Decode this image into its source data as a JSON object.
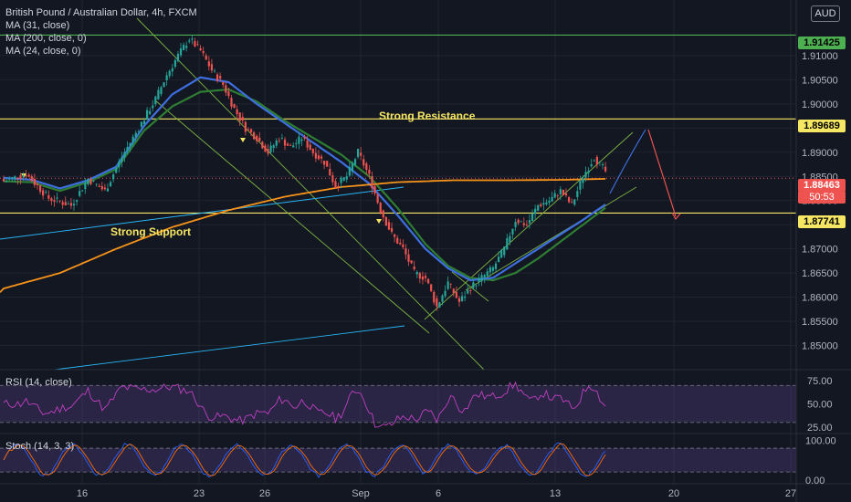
{
  "title": "British Pound / Australian Dollar, 4h, FXCM",
  "indicators": [
    "MA (31, close)",
    "MA (200, close, 0)",
    "MA (24, close, 0)"
  ],
  "unit": "AUD",
  "annotations": {
    "resistance": "Strong Resistance",
    "support": "Strong Support"
  },
  "price_badges": {
    "top": "1.91425",
    "resistance": "1.89689",
    "current": "1.88463",
    "countdown": "50:53",
    "support": "1.87741"
  },
  "panels": {
    "rsi": "RSI (14, close)",
    "stoch": "Stoch (14, 3, 3)"
  },
  "colors": {
    "background": "#131722",
    "up": "#26a69a",
    "down": "#ef5350",
    "ma31": "#3d6fe0",
    "ma200": "#f7931a",
    "ma24": "#2e7d32",
    "level": "#f5e663",
    "top_level": "#4caf50",
    "rsi": "#c040c0",
    "stoch_k": "#2962ff",
    "stoch_d": "#ff6d00"
  },
  "chart_data": {
    "type": "candlestick",
    "ylim": [
      1.845,
      1.92
    ],
    "y_ticks": [
      "1.91000",
      "1.90500",
      "1.90000",
      "1.89500",
      "1.89000",
      "1.88500",
      "1.88000",
      "1.87500",
      "1.87000",
      "1.86500",
      "1.86000",
      "1.85500",
      "1.85000"
    ],
    "x_ticks": [
      "16",
      "23",
      "26",
      "Sep",
      "6",
      "13",
      "20",
      "27"
    ],
    "levels": [
      1.91425,
      1.89689,
      1.87741
    ],
    "current_price": 1.88463,
    "anchors": [
      [
        0,
        1.884
      ],
      [
        8,
        1.8855
      ],
      [
        16,
        1.8805
      ],
      [
        24,
        1.879
      ],
      [
        30,
        1.8845
      ],
      [
        36,
        1.882
      ],
      [
        42,
        1.889
      ],
      [
        48,
        1.895
      ],
      [
        54,
        1.901
      ],
      [
        58,
        1.906
      ],
      [
        62,
        1.91
      ],
      [
        66,
        1.9135
      ],
      [
        70,
        1.911
      ],
      [
        74,
        1.907
      ],
      [
        78,
        1.904
      ],
      [
        82,
        1.899
      ],
      [
        86,
        1.895
      ],
      [
        90,
        1.893
      ],
      [
        94,
        1.89
      ],
      [
        98,
        1.893
      ],
      [
        102,
        1.891
      ],
      [
        106,
        1.893
      ],
      [
        110,
        1.89
      ],
      [
        114,
        1.888
      ],
      [
        118,
        1.883
      ],
      [
        122,
        1.885
      ],
      [
        126,
        1.89
      ],
      [
        130,
        1.885
      ],
      [
        134,
        1.878
      ],
      [
        138,
        1.873
      ],
      [
        142,
        1.87
      ],
      [
        146,
        1.865
      ],
      [
        150,
        1.864
      ],
      [
        154,
        1.858
      ],
      [
        158,
        1.863
      ],
      [
        162,
        1.859
      ],
      [
        166,
        1.862
      ],
      [
        170,
        1.864
      ],
      [
        174,
        1.866
      ],
      [
        178,
        1.87
      ],
      [
        182,
        1.876
      ],
      [
        186,
        1.875
      ],
      [
        190,
        1.879
      ],
      [
        194,
        1.88
      ],
      [
        198,
        1.882
      ],
      [
        202,
        1.879
      ],
      [
        206,
        1.885
      ],
      [
        210,
        1.889
      ],
      [
        214,
        1.886
      ]
    ],
    "ma31": [
      [
        0,
        1.8847
      ],
      [
        10,
        1.8843
      ],
      [
        20,
        1.8825
      ],
      [
        30,
        1.8842
      ],
      [
        40,
        1.887
      ],
      [
        50,
        1.8955
      ],
      [
        60,
        1.902
      ],
      [
        70,
        1.9055
      ],
      [
        80,
        1.9045
      ],
      [
        90,
        1.9
      ],
      [
        100,
        1.896
      ],
      [
        110,
        1.892
      ],
      [
        120,
        1.888
      ],
      [
        130,
        1.8835
      ],
      [
        140,
        1.877
      ],
      [
        150,
        1.87
      ],
      [
        158,
        1.866
      ],
      [
        166,
        1.8635
      ],
      [
        174,
        1.864
      ],
      [
        182,
        1.867
      ],
      [
        190,
        1.87
      ],
      [
        198,
        1.873
      ],
      [
        206,
        1.876
      ],
      [
        214,
        1.8792
      ]
    ],
    "ma24": [
      [
        0,
        1.884
      ],
      [
        10,
        1.8838
      ],
      [
        20,
        1.882
      ],
      [
        30,
        1.8838
      ],
      [
        40,
        1.8865
      ],
      [
        50,
        1.8945
      ],
      [
        60,
        1.8995
      ],
      [
        70,
        1.9025
      ],
      [
        80,
        1.903
      ],
      [
        90,
        1.9005
      ],
      [
        100,
        1.8965
      ],
      [
        110,
        1.893
      ],
      [
        120,
        1.8895
      ],
      [
        130,
        1.885
      ],
      [
        140,
        1.8785
      ],
      [
        150,
        1.871
      ],
      [
        158,
        1.8665
      ],
      [
        166,
        1.864
      ],
      [
        174,
        1.8635
      ],
      [
        182,
        1.865
      ],
      [
        190,
        1.868
      ],
      [
        198,
        1.8715
      ],
      [
        206,
        1.875
      ],
      [
        214,
        1.8785
      ]
    ],
    "ma200": [
      [
        -5,
        1.861
      ],
      [
        20,
        1.865
      ],
      [
        40,
        1.87
      ],
      [
        60,
        1.8745
      ],
      [
        80,
        1.878
      ],
      [
        100,
        1.8808
      ],
      [
        120,
        1.8828
      ],
      [
        140,
        1.8838
      ],
      [
        160,
        1.8842
      ],
      [
        180,
        1.8842
      ],
      [
        200,
        1.8843
      ],
      [
        214,
        1.8845
      ]
    ],
    "rsi": {
      "ylim": [
        20,
        85
      ],
      "ticks": [
        "75.00",
        "50.00",
        "25.00"
      ],
      "bands": [
        70,
        30
      ]
    },
    "stoch": {
      "ylim": [
        -5,
        110
      ],
      "ticks": [
        "100.00",
        "0.00"
      ],
      "bands": [
        80,
        20
      ]
    }
  }
}
